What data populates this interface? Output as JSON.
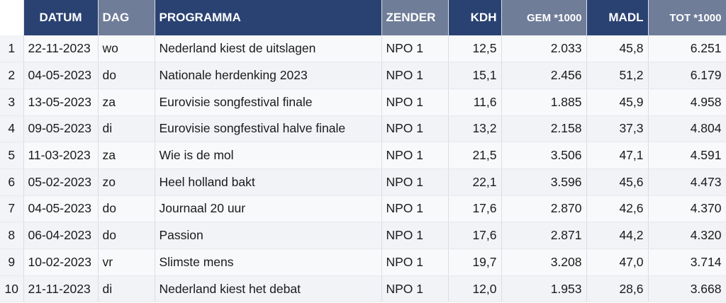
{
  "headers": {
    "datum": "DATUM",
    "dag": "DAG",
    "programma": "PROGRAMMA",
    "zender": "ZENDER",
    "kdh": "KDH",
    "gem": "GEM *1000",
    "madl": "MADL",
    "tot": "TOT *1000"
  },
  "rows": [
    {
      "idx": "1",
      "datum": "22-11-2023",
      "dag": "wo",
      "programma": "Nederland kiest de uitslagen",
      "zender": "NPO 1",
      "kdh": "12,5",
      "gem": "2.033",
      "madl": "45,8",
      "tot": "6.251"
    },
    {
      "idx": "2",
      "datum": "04-05-2023",
      "dag": "do",
      "programma": "Nationale herdenking 2023",
      "zender": "NPO 1",
      "kdh": "15,1",
      "gem": "2.456",
      "madl": "51,2",
      "tot": "6.179"
    },
    {
      "idx": "3",
      "datum": "13-05-2023",
      "dag": "za",
      "programma": "Eurovisie songfestival finale",
      "zender": "NPO 1",
      "kdh": "11,6",
      "gem": "1.885",
      "madl": "45,9",
      "tot": "4.958"
    },
    {
      "idx": "4",
      "datum": "09-05-2023",
      "dag": "di",
      "programma": "Eurovisie songfestival halve finale",
      "zender": "NPO 1",
      "kdh": "13,2",
      "gem": "2.158",
      "madl": "37,3",
      "tot": "4.804"
    },
    {
      "idx": "5",
      "datum": "11-03-2023",
      "dag": "za",
      "programma": "Wie is de mol",
      "zender": "NPO 1",
      "kdh": "21,5",
      "gem": "3.506",
      "madl": "47,1",
      "tot": "4.591"
    },
    {
      "idx": "6",
      "datum": "05-02-2023",
      "dag": "zo",
      "programma": "Heel holland bakt",
      "zender": "NPO 1",
      "kdh": "22,1",
      "gem": "3.596",
      "madl": "45,6",
      "tot": "4.473"
    },
    {
      "idx": "7",
      "datum": "04-05-2023",
      "dag": "do",
      "programma": "Journaal 20 uur",
      "zender": "NPO 1",
      "kdh": "17,6",
      "gem": "2.870",
      "madl": "42,6",
      "tot": "4.370"
    },
    {
      "idx": "8",
      "datum": "06-04-2023",
      "dag": "do",
      "programma": "Passion",
      "zender": "NPO 1",
      "kdh": "17,6",
      "gem": "2.871",
      "madl": "44,2",
      "tot": "4.320"
    },
    {
      "idx": "9",
      "datum": "10-02-2023",
      "dag": "vr",
      "programma": "Slimste mens",
      "zender": "NPO 1",
      "kdh": "19,7",
      "gem": "3.208",
      "madl": "47,0",
      "tot": "3.714"
    },
    {
      "idx": "10",
      "datum": "21-11-2023",
      "dag": "di",
      "programma": "Nederland kiest het debat",
      "zender": "NPO 1",
      "kdh": "12,0",
      "gem": "1.953",
      "madl": "28,6",
      "tot": "3.668"
    }
  ],
  "colors": {
    "header_dark": "#2a4272",
    "header_light": "#6f7d99"
  }
}
